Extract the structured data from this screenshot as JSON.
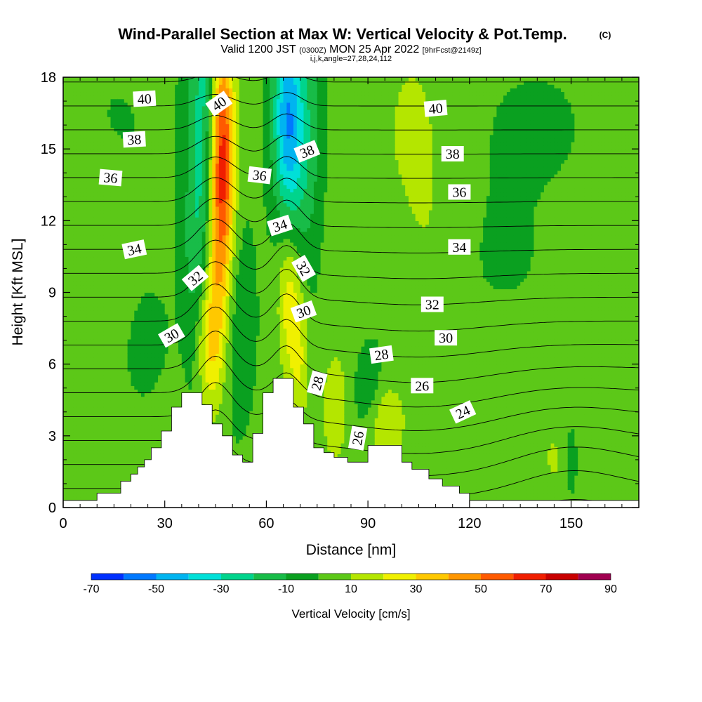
{
  "chart_data": {
    "type": "heatmap",
    "title": "Wind-Parallel Section at Max W: Vertical Velocity & Pot.Temp.",
    "title_mark": "(C)",
    "subtitle_main": "Valid 1200 JST",
    "subtitle_z": "(0300Z)",
    "subtitle_date": "MON 25 Apr 2022",
    "subtitle_fcst": "[9hrFcst@2149z]",
    "subtitle2": "i,j,k,angle=27,28,24,112",
    "xlabel": "Distance [nm]",
    "ylabel": "Height [Kft MSL]",
    "xlim": [
      0,
      170
    ],
    "ylim": [
      0,
      18
    ],
    "xticks": [
      0,
      30,
      60,
      90,
      120,
      150
    ],
    "yticks": [
      0,
      3,
      6,
      9,
      12,
      15,
      18
    ],
    "colorbar": {
      "label": "Vertical Velocity [cm/s]",
      "ticks": [
        -70,
        -50,
        -30,
        -10,
        10,
        30,
        50,
        70,
        90
      ],
      "bounds": [
        -70,
        -60,
        -50,
        -40,
        -30,
        -20,
        -10,
        0,
        10,
        20,
        30,
        40,
        50,
        60,
        70,
        80,
        90
      ],
      "colors": [
        "#0030ff",
        "#0078ff",
        "#00b4f0",
        "#00e0d8",
        "#00d48c",
        "#18bc48",
        "#0aa020",
        "#5cc818",
        "#b4e600",
        "#f0f000",
        "#ffc800",
        "#ff9600",
        "#ff5a00",
        "#f01e00",
        "#c80000",
        "#a00050",
        "#780096"
      ]
    },
    "background_w": 2,
    "w_features": [
      {
        "x": 42,
        "y": 16.5,
        "sx": 3.5,
        "sy": 6,
        "w": -28
      },
      {
        "x": 47,
        "y": 15.5,
        "sx": 2.5,
        "sy": 3.5,
        "w": 55
      },
      {
        "x": 46,
        "y": 11,
        "sx": 2.8,
        "sy": 3.5,
        "w": 35
      },
      {
        "x": 43,
        "y": 7,
        "sx": 3,
        "sy": 2.2,
        "w": 32
      },
      {
        "x": 50,
        "y": 8,
        "sx": 4,
        "sy": 3,
        "w": -12
      },
      {
        "x": 39,
        "y": 9,
        "sx": 3,
        "sy": 4,
        "w": -12
      },
      {
        "x": 66,
        "y": 16.5,
        "sx": 3,
        "sy": 3,
        "w": -40
      },
      {
        "x": 68,
        "y": 14,
        "sx": 3,
        "sy": 4,
        "w": -18
      },
      {
        "x": 67,
        "y": 9,
        "sx": 2.5,
        "sy": 2.5,
        "w": 30
      },
      {
        "x": 70,
        "y": 6,
        "sx": 2,
        "sy": 2,
        "w": 15
      },
      {
        "x": 73,
        "y": 16,
        "sx": 3,
        "sy": 4,
        "w": -14
      },
      {
        "x": 95,
        "y": 3.5,
        "sx": 4,
        "sy": 1.2,
        "w": 18
      },
      {
        "x": 80,
        "y": 4,
        "sx": 2.5,
        "sy": 1.5,
        "w": 16
      },
      {
        "x": 25,
        "y": 6.5,
        "sx": 4,
        "sy": 1.5,
        "w": -12
      },
      {
        "x": 30,
        "y": 4,
        "sx": 6,
        "sy": 2,
        "w": 6
      },
      {
        "x": 90,
        "y": 5,
        "sx": 3,
        "sy": 1.5,
        "w": -14
      },
      {
        "x": 108,
        "y": 12,
        "sx": 6,
        "sy": 6,
        "w": 7
      },
      {
        "x": 130,
        "y": 10,
        "sx": 10,
        "sy": 3,
        "w": -3
      },
      {
        "x": 130,
        "y": 4,
        "sx": 8,
        "sy": 2.5,
        "w": 7
      },
      {
        "x": 145,
        "y": 2,
        "sx": 3,
        "sy": 1.2,
        "w": 8
      },
      {
        "x": 160,
        "y": 3,
        "sx": 4,
        "sy": 2,
        "w": 8
      },
      {
        "x": 15,
        "y": 15,
        "sx": 10,
        "sy": 3,
        "w": -3
      },
      {
        "x": 10,
        "y": 10,
        "sx": 8,
        "sy": 3,
        "w": 7
      },
      {
        "x": 85,
        "y": 10,
        "sx": 5,
        "sy": 4,
        "w": 7
      },
      {
        "x": 140,
        "y": 16,
        "sx": 12,
        "sy": 2,
        "w": -3
      },
      {
        "x": 100,
        "y": 16,
        "sx": 6,
        "sy": 3,
        "w": 7
      },
      {
        "x": 150,
        "y": 2,
        "sx": 1,
        "sy": 0.8,
        "w": -15
      }
    ],
    "terrain": [
      [
        0,
        0.3
      ],
      [
        10,
        0.3
      ],
      [
        10,
        0.6
      ],
      [
        17,
        0.6
      ],
      [
        17,
        1.1
      ],
      [
        20,
        1.1
      ],
      [
        20,
        1.4
      ],
      [
        22,
        1.4
      ],
      [
        22,
        1.7
      ],
      [
        24,
        1.7
      ],
      [
        24,
        2.0
      ],
      [
        26,
        2.0
      ],
      [
        26,
        2.5
      ],
      [
        29,
        2.5
      ],
      [
        29,
        3.2
      ],
      [
        32,
        3.2
      ],
      [
        32,
        4.2
      ],
      [
        35,
        4.2
      ],
      [
        35,
        4.8
      ],
      [
        41,
        4.8
      ],
      [
        41,
        4.3
      ],
      [
        44,
        4.3
      ],
      [
        44,
        3.5
      ],
      [
        47,
        3.5
      ],
      [
        47,
        3.0
      ],
      [
        50,
        3.0
      ],
      [
        50,
        2.2
      ],
      [
        53,
        2.2
      ],
      [
        53,
        1.9
      ],
      [
        56,
        1.9
      ],
      [
        56,
        3.1
      ],
      [
        59,
        3.1
      ],
      [
        59,
        4.8
      ],
      [
        62,
        4.8
      ],
      [
        62,
        5.4
      ],
      [
        68,
        5.4
      ],
      [
        68,
        4.2
      ],
      [
        71,
        4.2
      ],
      [
        71,
        3.5
      ],
      [
        74,
        3.5
      ],
      [
        74,
        2.5
      ],
      [
        77,
        2.5
      ],
      [
        77,
        2.3
      ],
      [
        80,
        2.3
      ],
      [
        80,
        2.1
      ],
      [
        84,
        2.1
      ],
      [
        84,
        1.9
      ],
      [
        90,
        1.9
      ],
      [
        90,
        2.6
      ],
      [
        100,
        2.6
      ],
      [
        100,
        1.9
      ],
      [
        103,
        1.9
      ],
      [
        103,
        1.6
      ],
      [
        108,
        1.6
      ],
      [
        108,
        1.2
      ],
      [
        112,
        1.2
      ],
      [
        112,
        0.9
      ],
      [
        117,
        0.9
      ],
      [
        117,
        0.6
      ],
      [
        120,
        0.6
      ],
      [
        120,
        0.3
      ],
      [
        170,
        0.3
      ]
    ],
    "theta_levels": [
      21,
      22,
      23,
      24,
      25,
      26,
      27,
      28,
      29,
      30,
      31,
      32,
      33,
      34,
      35,
      36,
      37,
      38,
      39,
      40,
      41
    ],
    "theta_model": {
      "base": 22.2,
      "slope": 1.0,
      "bumps": [
        {
          "x": 45,
          "y": 8,
          "sx": 5,
          "sy": 6,
          "a": -1.6
        },
        {
          "x": 66,
          "y": 10,
          "sx": 4,
          "sy": 6,
          "a": -1.2
        },
        {
          "x": 105,
          "y": 4,
          "sx": 20,
          "sy": 4,
          "a": 0.6
        },
        {
          "x": 150,
          "y": 2,
          "sx": 15,
          "sy": 2,
          "a": -0.8
        }
      ]
    },
    "contour_labels": [
      {
        "text": "40",
        "x": 24,
        "y": 17.1,
        "angle": -3
      },
      {
        "text": "40",
        "x": 46,
        "y": 16.9,
        "angle": -35
      },
      {
        "text": "40",
        "x": 110,
        "y": 16.7,
        "angle": -5
      },
      {
        "text": "38",
        "x": 21,
        "y": 15.4,
        "angle": -3
      },
      {
        "text": "38",
        "x": 72,
        "y": 14.9,
        "angle": -22
      },
      {
        "text": "38",
        "x": 115,
        "y": 14.8,
        "angle": 0
      },
      {
        "text": "36",
        "x": 14,
        "y": 13.8,
        "angle": 5
      },
      {
        "text": "36",
        "x": 58,
        "y": 13.9,
        "angle": 7
      },
      {
        "text": "36",
        "x": 117,
        "y": 13.2,
        "angle": 0
      },
      {
        "text": "34",
        "x": 21,
        "y": 10.8,
        "angle": -12
      },
      {
        "text": "34",
        "x": 64,
        "y": 11.8,
        "angle": -18
      },
      {
        "text": "34",
        "x": 117,
        "y": 10.9,
        "angle": 0
      },
      {
        "text": "32",
        "x": 39,
        "y": 9.6,
        "angle": -40
      },
      {
        "text": "32",
        "x": 71,
        "y": 10.0,
        "angle": 60
      },
      {
        "text": "32",
        "x": 109,
        "y": 8.5,
        "angle": 0
      },
      {
        "text": "30",
        "x": 32,
        "y": 7.2,
        "angle": -30
      },
      {
        "text": "30",
        "x": 71,
        "y": 8.2,
        "angle": -20
      },
      {
        "text": "30",
        "x": 113,
        "y": 7.1,
        "angle": 0
      },
      {
        "text": "28",
        "x": 94,
        "y": 6.4,
        "angle": -8
      },
      {
        "text": "28",
        "x": 75,
        "y": 5.2,
        "angle": -75
      },
      {
        "text": "26",
        "x": 106,
        "y": 5.1,
        "angle": 0
      },
      {
        "text": "26",
        "x": 87,
        "y": 2.9,
        "angle": -80
      },
      {
        "text": "24",
        "x": 118,
        "y": 4.0,
        "angle": -25
      }
    ]
  }
}
